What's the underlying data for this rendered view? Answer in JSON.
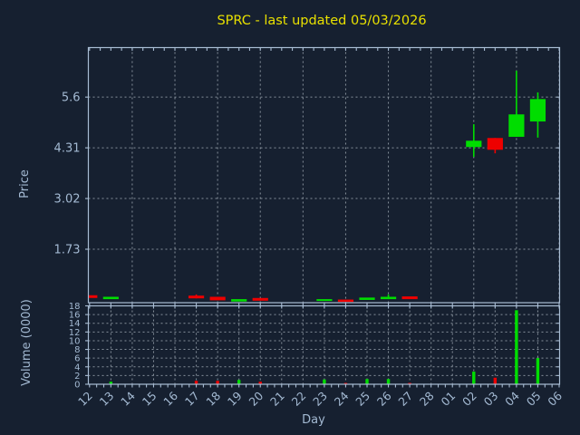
{
  "title": "SPRC - last updated 05/03/2026",
  "colors": {
    "background": "#162030",
    "axis": "#a9bdd4",
    "text": "#a3b9d2",
    "grid": "#9aa4ae",
    "title": "#e8e000",
    "up": "#00dd00",
    "down": "#ee0000"
  },
  "axes": {
    "xlabel": "Day",
    "price_label": "Price",
    "volume_label": "Volume (0000)"
  },
  "chart_data": {
    "type": "candlestick_with_volume",
    "title": "SPRC - last updated 05/03/2026",
    "xlabel": "Day",
    "ylabel_price": "Price",
    "ylabel_volume": "Volume (0000)",
    "x_categories": [
      "12",
      "13",
      "14",
      "15",
      "16",
      "17",
      "18",
      "19",
      "20",
      "21",
      "22",
      "23",
      "24",
      "25",
      "26",
      "27",
      "28",
      "01",
      "02",
      "03",
      "04",
      "05",
      "06"
    ],
    "price_ticks": [
      5.6,
      4.31,
      3.02,
      1.73
    ],
    "price_range": [
      0.37,
      6.86
    ],
    "volume_ticks": [
      18,
      16,
      14,
      12,
      10,
      8,
      6,
      4,
      2,
      0
    ],
    "volume_range": [
      0,
      18
    ],
    "grid": true,
    "legend": "none",
    "candles": [
      {
        "day": "12",
        "open": 0.56,
        "high": 0.56,
        "low": 0.49,
        "close": 0.49,
        "volume": 0
      },
      {
        "day": "13",
        "open": 0.46,
        "high": 0.52,
        "low": 0.46,
        "close": 0.52,
        "volume": 0.6
      },
      {
        "day": "17",
        "open": 0.55,
        "high": 0.58,
        "low": 0.48,
        "close": 0.48,
        "volume": 0.8
      },
      {
        "day": "18",
        "open": 0.52,
        "high": 0.52,
        "low": 0.43,
        "close": 0.43,
        "volume": 0.8
      },
      {
        "day": "19",
        "open": 0.4,
        "high": 0.46,
        "low": 0.4,
        "close": 0.46,
        "volume": 1.0
      },
      {
        "day": "20",
        "open": 0.49,
        "high": 0.49,
        "low": 0.42,
        "close": 0.42,
        "volume": 0.6
      },
      {
        "day": "23",
        "open": 0.42,
        "high": 0.46,
        "low": 0.42,
        "close": 0.46,
        "volume": 1.1
      },
      {
        "day": "24",
        "open": 0.45,
        "high": 0.45,
        "low": 0.39,
        "close": 0.39,
        "volume": 0.3
      },
      {
        "day": "25",
        "open": 0.44,
        "high": 0.5,
        "low": 0.44,
        "close": 0.5,
        "volume": 1.2
      },
      {
        "day": "26",
        "open": 0.46,
        "high": 0.58,
        "low": 0.46,
        "close": 0.52,
        "volume": 1.2
      },
      {
        "day": "27",
        "open": 0.53,
        "high": 0.53,
        "low": 0.46,
        "close": 0.46,
        "volume": 0.3
      },
      {
        "day": "02",
        "open": 4.33,
        "high": 4.91,
        "low": 4.08,
        "close": 4.49,
        "volume": 2.9
      },
      {
        "day": "03",
        "open": 4.56,
        "high": 4.56,
        "low": 4.17,
        "close": 4.26,
        "volume": 1.5
      },
      {
        "day": "04",
        "open": 4.59,
        "high": 6.27,
        "low": 4.59,
        "close": 5.16,
        "volume": 17.0
      },
      {
        "day": "05",
        "open": 4.98,
        "high": 5.72,
        "low": 4.57,
        "close": 5.55,
        "volume": 6.0
      }
    ]
  }
}
